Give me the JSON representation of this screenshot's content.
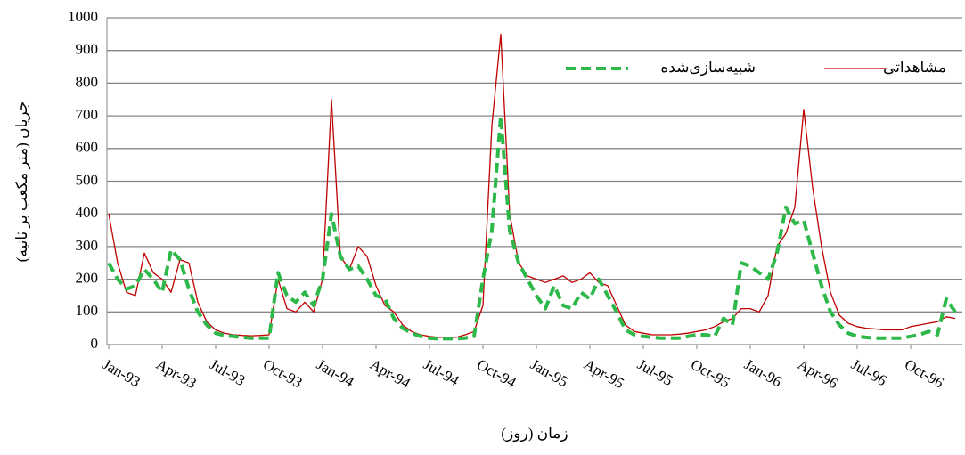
{
  "chart_data": {
    "type": "line",
    "y_label": "جریان (متر مکعب بر ثانیه)",
    "x_label": "زمان (روز)",
    "categories": [
      "Jan-93",
      null,
      null,
      null,
      null,
      null,
      "Apr-93",
      null,
      null,
      null,
      null,
      null,
      "Jul-93",
      null,
      null,
      null,
      null,
      null,
      "Oct-93",
      null,
      null,
      null,
      null,
      null,
      "Jan-94",
      null,
      null,
      null,
      null,
      null,
      "Apr-94",
      null,
      null,
      null,
      null,
      null,
      "Jul-94",
      null,
      null,
      null,
      null,
      null,
      "Oct-94",
      null,
      null,
      null,
      null,
      null,
      "Jan-95",
      null,
      null,
      null,
      null,
      null,
      "Apr-95",
      null,
      null,
      null,
      null,
      null,
      "Jul-95",
      null,
      null,
      null,
      null,
      null,
      "Oct-95",
      null,
      null,
      null,
      null,
      null,
      "Jan-96",
      null,
      null,
      null,
      null,
      null,
      "Apr-96",
      null,
      null,
      null,
      null,
      null,
      "Jul-96",
      null,
      null,
      null,
      null,
      null,
      "Oct-96",
      null,
      null,
      null,
      null,
      null
    ],
    "series": [
      {
        "name": "مشاهداتی",
        "color": "#c00000",
        "dash": false,
        "values": [
          400,
          250,
          160,
          150,
          280,
          220,
          200,
          160,
          260,
          250,
          130,
          70,
          45,
          35,
          30,
          28,
          27,
          28,
          30,
          200,
          110,
          100,
          130,
          100,
          200,
          750,
          270,
          230,
          300,
          270,
          180,
          120,
          100,
          60,
          40,
          30,
          25,
          22,
          22,
          22,
          30,
          40,
          120,
          670,
          950,
          400,
          250,
          210,
          200,
          190,
          200,
          210,
          190,
          200,
          220,
          190,
          180,
          120,
          60,
          40,
          35,
          30,
          30,
          30,
          32,
          35,
          40,
          45,
          55,
          70,
          80,
          110,
          110,
          100,
          150,
          300,
          340,
          420,
          720,
          480,
          300,
          160,
          90,
          65,
          55,
          50,
          48,
          45,
          45,
          45,
          55,
          60,
          65,
          70,
          85,
          80
        ]
      },
      {
        "name": "شبیه‌سازی‌شده",
        "color": "#2db84a",
        "dash": true,
        "values": [
          250,
          200,
          170,
          180,
          230,
          200,
          160,
          290,
          260,
          170,
          100,
          60,
          35,
          28,
          25,
          22,
          20,
          20,
          20,
          220,
          150,
          130,
          160,
          120,
          200,
          400,
          270,
          230,
          240,
          200,
          150,
          140,
          80,
          50,
          35,
          25,
          20,
          18,
          18,
          18,
          20,
          25,
          200,
          350,
          700,
          350,
          250,
          200,
          150,
          110,
          180,
          120,
          110,
          160,
          140,
          200,
          150,
          100,
          45,
          30,
          25,
          22,
          20,
          20,
          20,
          25,
          30,
          30,
          25,
          80,
          60,
          250,
          240,
          220,
          200,
          280,
          420,
          370,
          380,
          280,
          180,
          100,
          60,
          35,
          25,
          22,
          20,
          20,
          20,
          20,
          25,
          30,
          40,
          30,
          140,
          100
        ]
      }
    ],
    "ylim": [
      0,
      1000
    ],
    "yticks": [
      0,
      100,
      200,
      300,
      400,
      500,
      600,
      700,
      800,
      900,
      1000
    ],
    "grid": true
  }
}
